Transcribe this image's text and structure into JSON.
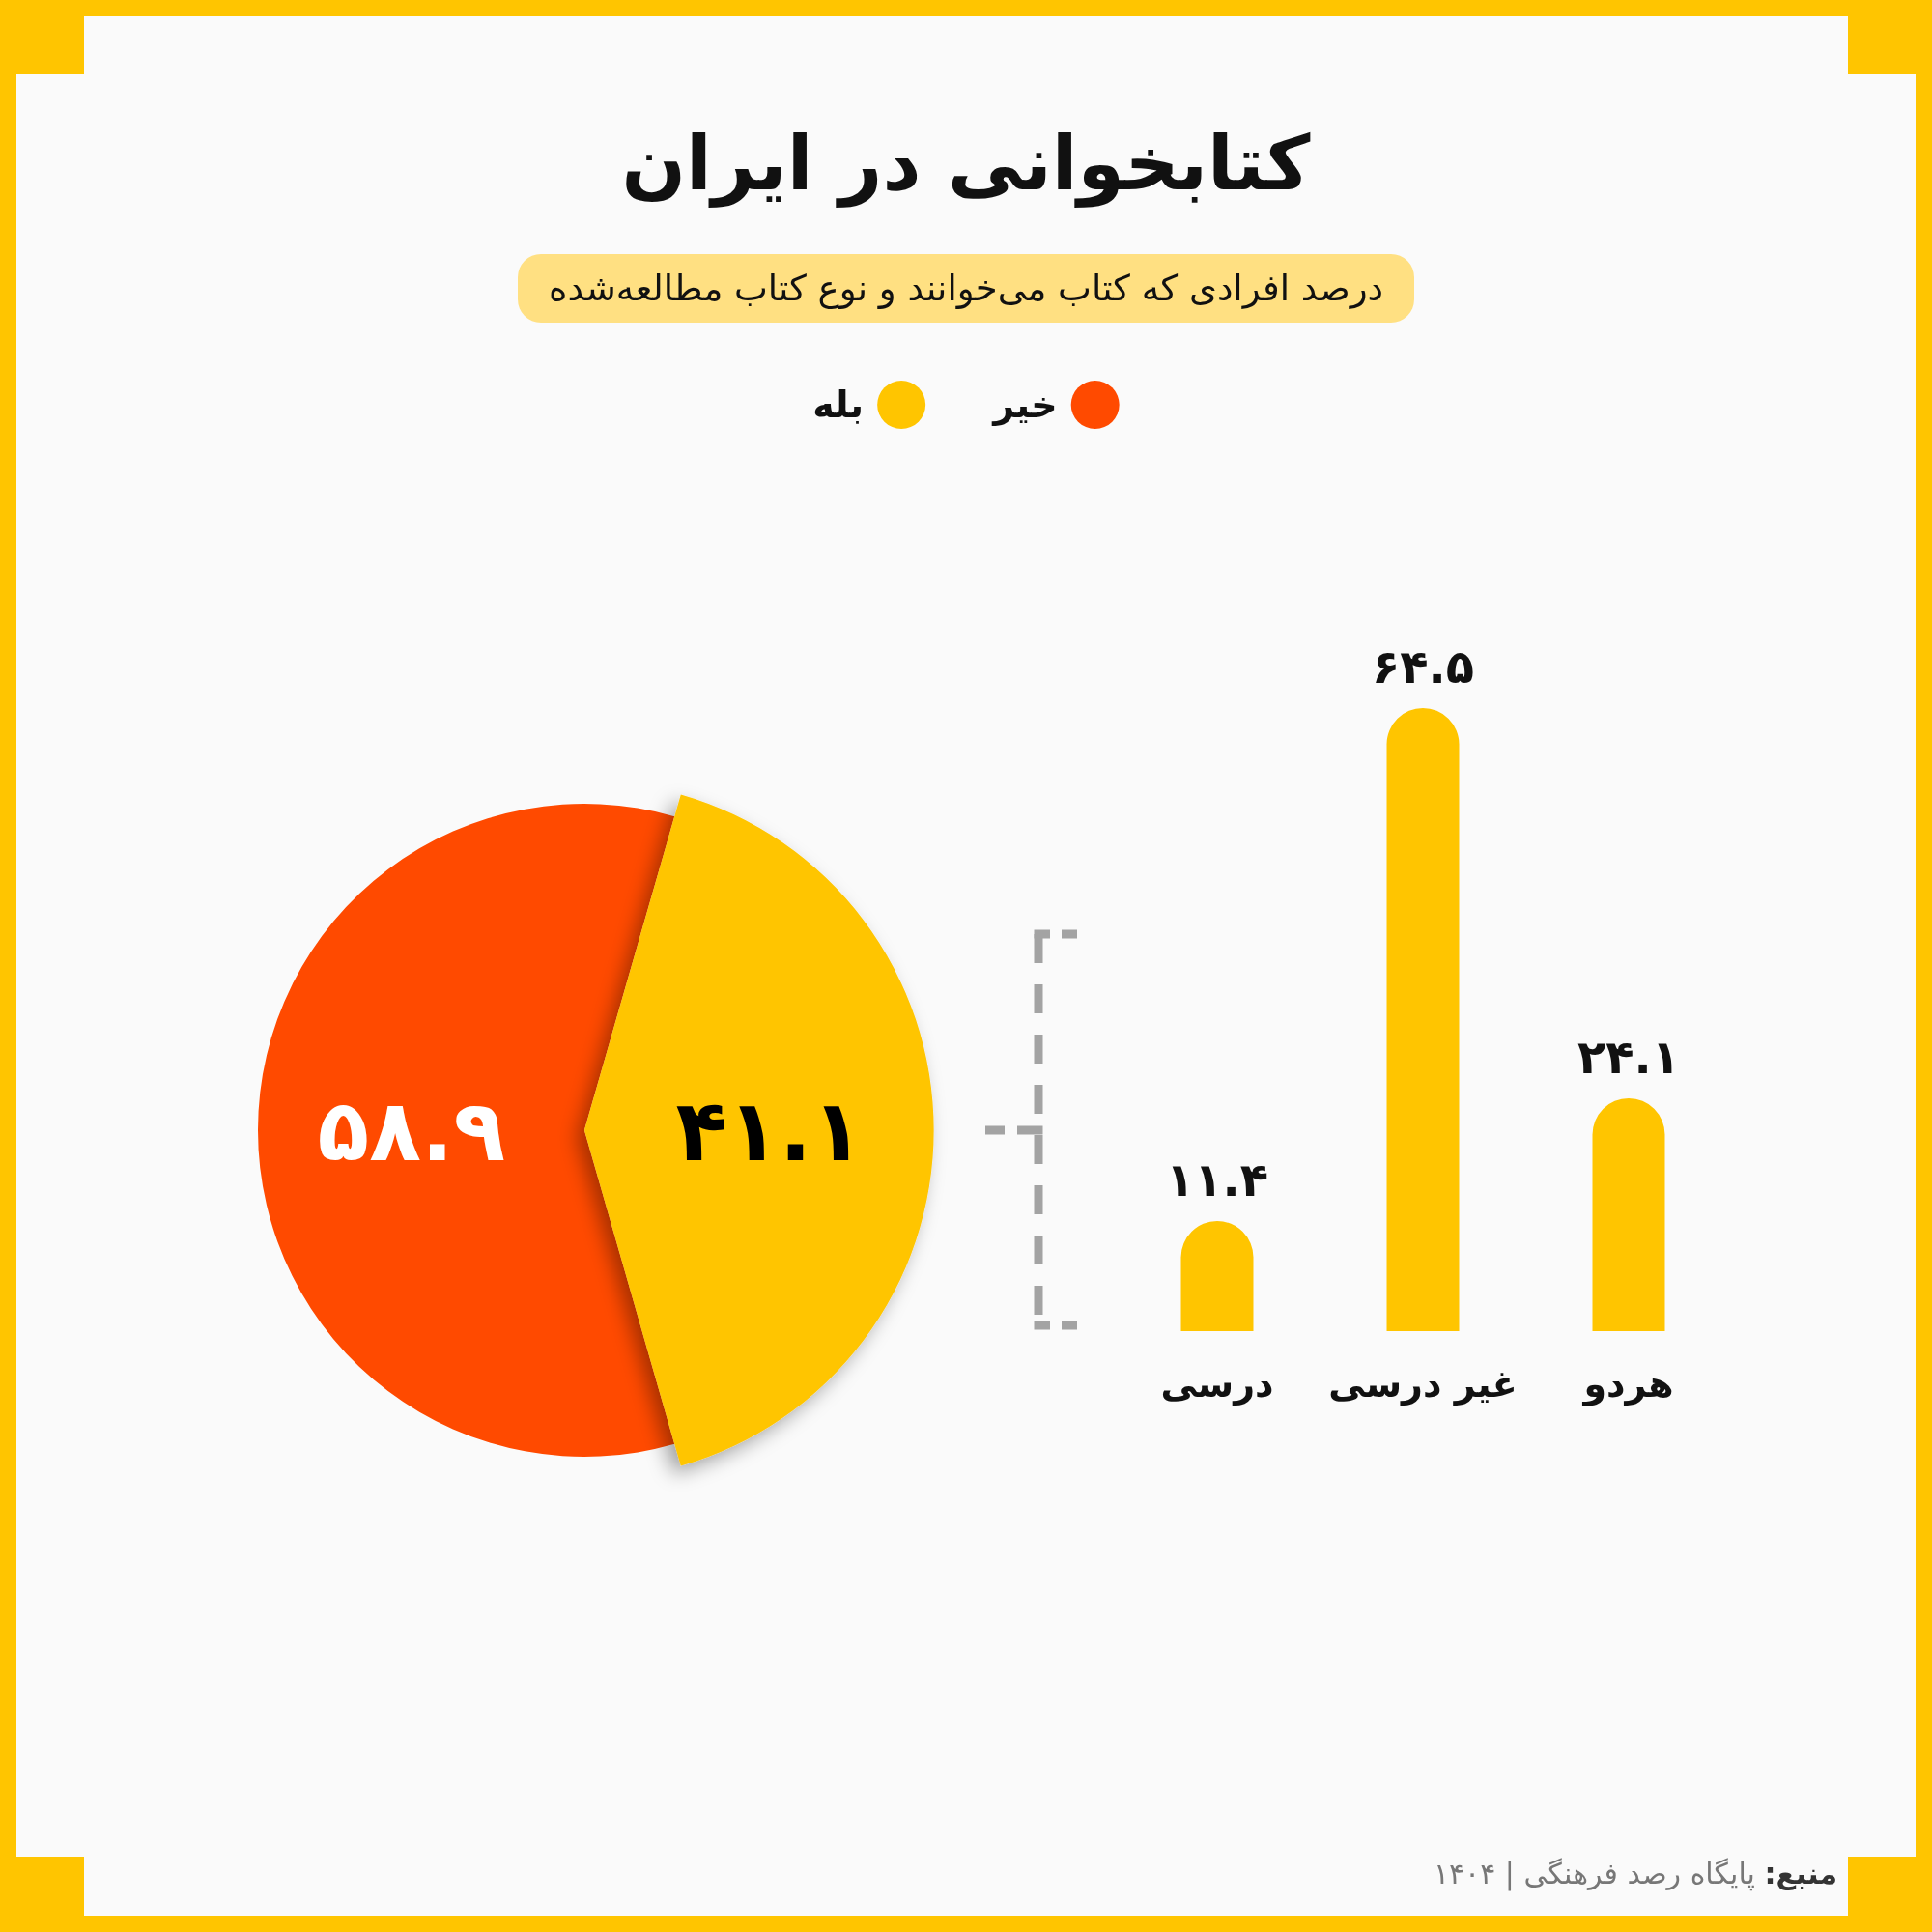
{
  "chart_data": [
    {
      "type": "pie",
      "title": "کتابخوانی در ایران",
      "subtitle": "درصد افرادی که کتاب می‌خوانند و نوع کتاب مطالعه‌شده",
      "categories": [
        "خیر",
        "بله"
      ],
      "values": [
        58.9,
        41.1
      ],
      "colors": [
        "#ff4a00",
        "#ffc500"
      ],
      "value_labels": [
        "۵۸.۹",
        "۴۱.۱"
      ],
      "legend": "top",
      "annotations": [
        "منبع: پایگاه رصد فرهنگی | ۱۴۰۴"
      ]
    },
    {
      "type": "bar",
      "categories": [
        "درسی",
        "غیر درسی",
        "هردو"
      ],
      "values": [
        11.4,
        64.5,
        24.1
      ],
      "color": "#ffc500",
      "value_labels": [
        "۱۱.۴",
        "۶۴.۵",
        "۲۴.۱"
      ]
    }
  ]
}
